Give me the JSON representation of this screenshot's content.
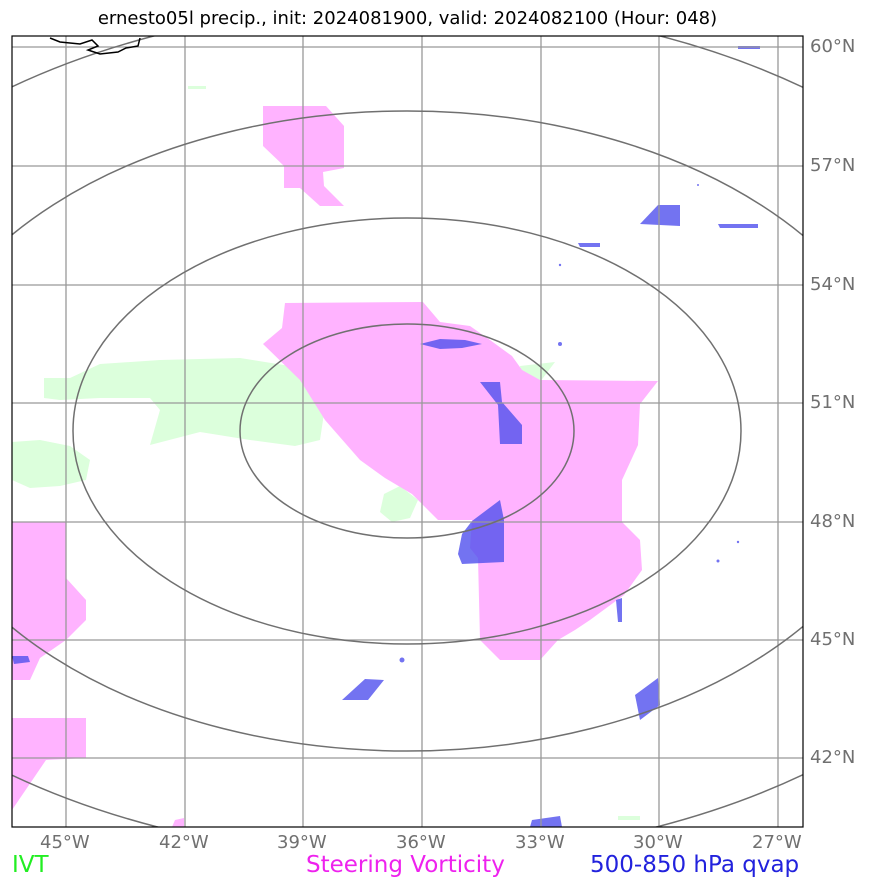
{
  "title": "ernesto05l precip., init: 2024081900, valid: 2024082100 (Hour: 048)",
  "map": {
    "lon_ticks": [
      "45°W",
      "42°W",
      "39°W",
      "36°W",
      "33°W",
      "30°W",
      "27°W"
    ],
    "lat_ticks": [
      "60°N",
      "57°N",
      "54°N",
      "51°N",
      "48°N",
      "45°N",
      "42°N"
    ],
    "layers": [
      {
        "name": "IVT",
        "color": "#dcffdc"
      },
      {
        "name": "Steering Vorticity",
        "color": "#ffb3ff"
      },
      {
        "name": "500-850 hPa qvap",
        "color": "#5050ee"
      }
    ],
    "range_ring_color": "#707070",
    "gridline_color": "#999999"
  },
  "legend": {
    "ivt": {
      "label": "IVT",
      "color": "#22ee22"
    },
    "vorticity": {
      "label": "Steering Vorticity",
      "color": "#ee22ee"
    },
    "qvap": {
      "label": "500-850 hPa qvap",
      "color": "#2222dd"
    }
  }
}
